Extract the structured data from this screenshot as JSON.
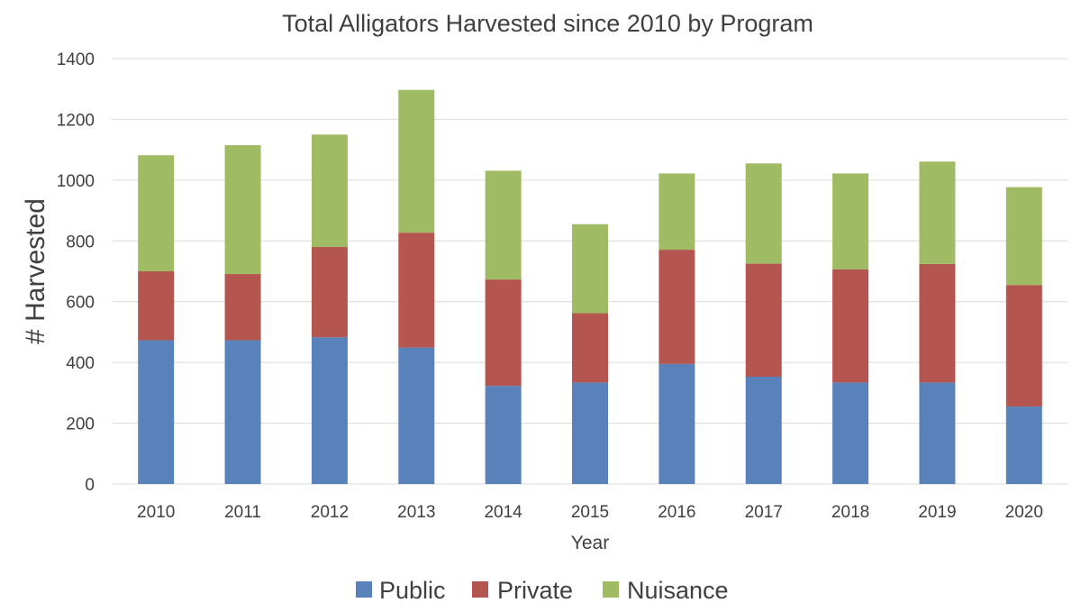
{
  "chart_data": {
    "type": "bar",
    "stacked": true,
    "title": "Total Alligators Harvested since 2010 by Program",
    "xlabel": "Year",
    "ylabel": "# Harvested",
    "ylim": [
      0,
      1400
    ],
    "yticks": [
      0,
      200,
      400,
      600,
      800,
      1000,
      1200,
      1400
    ],
    "grid": true,
    "legend_position": "bottom",
    "categories": [
      "2010",
      "2011",
      "2012",
      "2013",
      "2014",
      "2015",
      "2016",
      "2017",
      "2018",
      "2019",
      "2020"
    ],
    "series": [
      {
        "name": "Public",
        "color": "#5a82ba",
        "values": [
          473,
          473,
          483,
          449,
          323,
          334,
          395,
          353,
          334,
          334,
          255
        ]
      },
      {
        "name": "Private",
        "color": "#b5554f",
        "values": [
          227,
          218,
          297,
          378,
          350,
          228,
          376,
          372,
          372,
          390,
          400
        ]
      },
      {
        "name": "Nuisance",
        "color": "#9fbb63",
        "values": [
          382,
          424,
          370,
          470,
          358,
          293,
          251,
          330,
          316,
          337,
          322
        ]
      }
    ]
  }
}
